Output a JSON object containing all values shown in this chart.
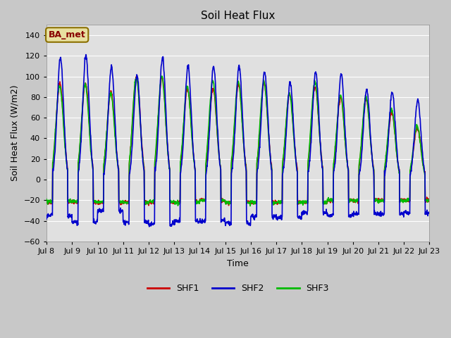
{
  "title": "Soil Heat Flux",
  "ylabel": "Soil Heat Flux (W/m2)",
  "xlabel": "Time",
  "ylim": [
    -60,
    150
  ],
  "yticks": [
    -60,
    -40,
    -20,
    0,
    20,
    40,
    60,
    80,
    100,
    120,
    140
  ],
  "fig_bg_color": "#c8c8c8",
  "plot_bg_color": "#e0e0e0",
  "grid_color": "#ffffff",
  "line_colors": {
    "SHF1": "#cc0000",
    "SHF2": "#0000cc",
    "SHF3": "#00bb00"
  },
  "legend_box_facecolor": "#e8e0a0",
  "legend_box_edgecolor": "#8b7000",
  "annotation_text": "BA_met",
  "annotation_color": "#880000",
  "xtick_labels": [
    "Jul 8",
    "Jul 9",
    "Jul 10",
    "Jul 11",
    "Jul 12",
    "Jul 13",
    "Jul 14",
    "Jul 15",
    "Jul 16",
    "Jul 17",
    "Jul 18",
    "Jul 19",
    "Jul 20",
    "Jul 21",
    "Jul 22",
    "Jul 23"
  ],
  "num_days": 15,
  "dt_hours": 0.25,
  "shf2_amps": [
    118,
    120,
    109,
    101,
    118,
    110,
    109,
    110,
    105,
    94,
    104,
    102,
    87,
    85,
    77
  ],
  "shf1_amps": [
    93,
    94,
    85,
    100,
    99,
    88,
    88,
    93,
    94,
    83,
    90,
    80,
    78,
    65,
    50
  ],
  "shf3_amps": [
    91,
    92,
    84,
    99,
    100,
    90,
    95,
    95,
    95,
    83,
    95,
    82,
    80,
    68,
    52
  ],
  "shf2_nights": [
    -35,
    -41,
    -30,
    -41,
    -43,
    -40,
    -40,
    -42,
    -36,
    -37,
    -32,
    -35,
    -33,
    -33,
    -32
  ],
  "shf1_nights": [
    -22,
    -22,
    -22,
    -22,
    -22,
    -22,
    -20,
    -22,
    -22,
    -22,
    -22,
    -20,
    -20,
    -20,
    -20
  ],
  "shf3_nights": [
    -21,
    -21,
    -22,
    -22,
    -21,
    -22,
    -20,
    -22,
    -22,
    -22,
    -22,
    -20,
    -20,
    -20,
    -20
  ],
  "shf2_phase": 0.5,
  "shf1_phase": 0.0,
  "shf3_phase": -0.2,
  "line_width": 1.2,
  "tick_fontsize": 8,
  "label_fontsize": 9,
  "title_fontsize": 11
}
